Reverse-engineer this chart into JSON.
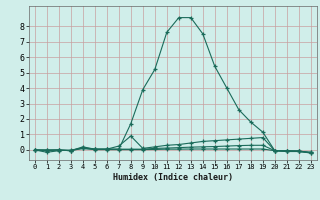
{
  "title": "",
  "xlabel": "Humidex (Indice chaleur)",
  "ylabel": "",
  "bg_color": "#d0eeea",
  "grid_color": "#c8a0a0",
  "line_color": "#1a6b5a",
  "xlim": [
    -0.5,
    23.5
  ],
  "ylim": [
    -0.65,
    9.3
  ],
  "xticks": [
    0,
    1,
    2,
    3,
    4,
    5,
    6,
    7,
    8,
    9,
    10,
    11,
    12,
    13,
    14,
    15,
    16,
    17,
    18,
    19,
    20,
    21,
    22,
    23
  ],
  "yticks": [
    0,
    1,
    2,
    3,
    4,
    5,
    6,
    7,
    8
  ],
  "series": [
    {
      "x": [
        0,
        1,
        2,
        3,
        4,
        5,
        6,
        7,
        8,
        9,
        10,
        11,
        12,
        13,
        14,
        15,
        16,
        17,
        18,
        19,
        20,
        21,
        22,
        23
      ],
      "y": [
        0.0,
        -0.15,
        -0.05,
        0.0,
        0.1,
        0.05,
        0.05,
        0.05,
        1.7,
        3.9,
        5.2,
        7.6,
        8.55,
        8.55,
        7.5,
        5.4,
        4.0,
        2.6,
        1.8,
        1.15,
        -0.05,
        -0.05,
        -0.05,
        -0.2
      ],
      "marker": "+"
    },
    {
      "x": [
        0,
        1,
        2,
        3,
        4,
        5,
        6,
        7,
        8,
        9,
        10,
        11,
        12,
        13,
        14,
        15,
        16,
        17,
        18,
        19,
        20,
        21,
        22,
        23
      ],
      "y": [
        0.0,
        -0.05,
        0.0,
        -0.05,
        0.2,
        0.05,
        0.05,
        0.25,
        0.9,
        0.1,
        0.2,
        0.3,
        0.35,
        0.45,
        0.55,
        0.6,
        0.65,
        0.7,
        0.75,
        0.8,
        -0.05,
        -0.1,
        -0.1,
        -0.15
      ],
      "marker": "+"
    },
    {
      "x": [
        0,
        1,
        2,
        3,
        4,
        5,
        6,
        7,
        8,
        9,
        10,
        11,
        12,
        13,
        14,
        15,
        16,
        17,
        18,
        19,
        20,
        21,
        22,
        23
      ],
      "y": [
        0.0,
        0.0,
        0.0,
        -0.05,
        0.15,
        0.05,
        0.05,
        0.05,
        0.05,
        0.05,
        0.1,
        0.12,
        0.15,
        0.18,
        0.2,
        0.22,
        0.25,
        0.28,
        0.3,
        0.3,
        -0.05,
        -0.1,
        -0.1,
        -0.15
      ],
      "marker": "+"
    },
    {
      "x": [
        0,
        1,
        2,
        3,
        4,
        5,
        6,
        7,
        8,
        9,
        10,
        11,
        12,
        13,
        14,
        15,
        16,
        17,
        18,
        19,
        20,
        21,
        22,
        23
      ],
      "y": [
        0.0,
        0.0,
        0.0,
        -0.05,
        0.1,
        0.02,
        0.02,
        0.02,
        0.02,
        0.02,
        0.03,
        0.05,
        0.05,
        0.06,
        0.06,
        0.06,
        0.06,
        0.06,
        0.06,
        0.06,
        -0.05,
        -0.05,
        -0.1,
        -0.2
      ],
      "marker": "+"
    }
  ]
}
